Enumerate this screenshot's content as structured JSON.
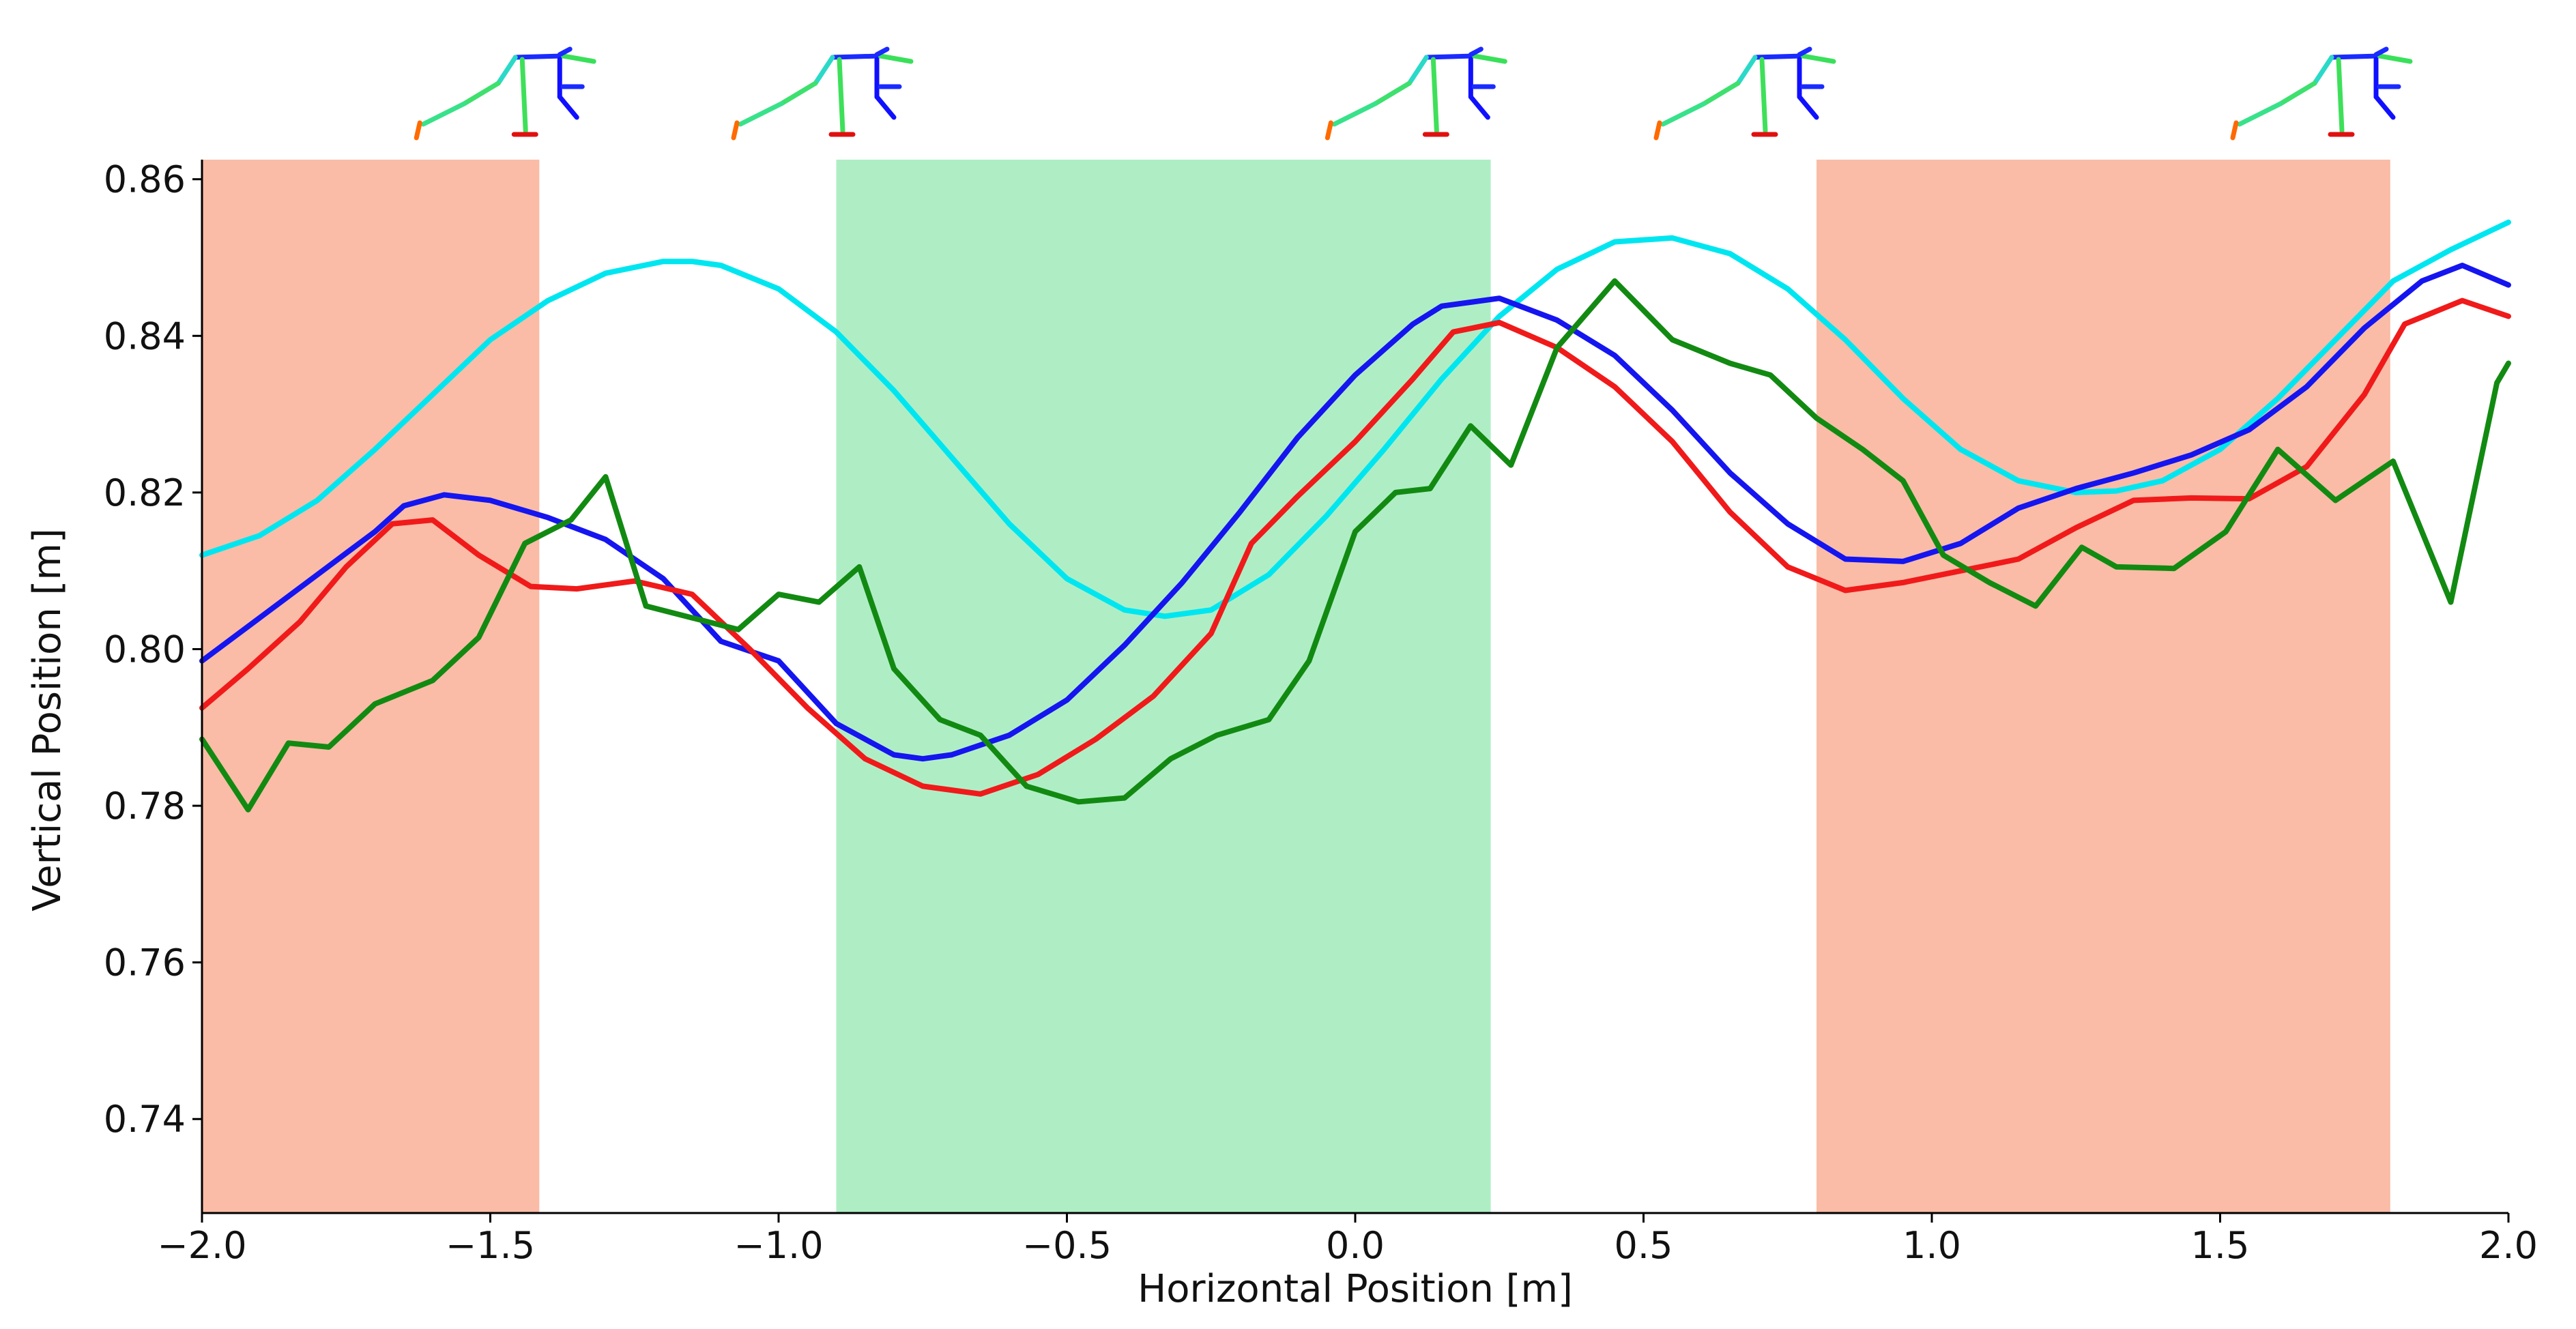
{
  "chart_data": {
    "type": "line",
    "title": "",
    "xlabel": "Horizontal Position [m]",
    "ylabel": "Vertical Position [m]",
    "xlim": [
      -2.0,
      2.0
    ],
    "ylim": [
      0.728,
      0.8625
    ],
    "x_ticks": [
      -2.0,
      -1.5,
      -1.0,
      -0.5,
      0.0,
      0.5,
      1.0,
      1.5,
      2.0
    ],
    "x_tick_labels": [
      "−2.0",
      "−1.5",
      "−1.0",
      "−0.5",
      "0.0",
      "0.5",
      "1.0",
      "1.5",
      "2.0"
    ],
    "y_ticks": [
      0.74,
      0.76,
      0.78,
      0.8,
      0.82,
      0.84,
      0.86
    ],
    "y_tick_labels": [
      "0.74",
      "0.76",
      "0.78",
      "0.80",
      "0.82",
      "0.84",
      "0.86"
    ],
    "grid": false,
    "shaded_regions": [
      {
        "x_start": -2.0,
        "x_end": -1.415,
        "color": "#f9b59c"
      },
      {
        "x_start": -0.9,
        "x_end": 0.235,
        "color": "#a6ecbf"
      },
      {
        "x_start": 0.8,
        "x_end": 1.795,
        "color": "#f9b59c"
      }
    ],
    "series": [
      {
        "name": "cyan",
        "color": "#00e6f0",
        "x": [
          -2.0,
          -1.9,
          -1.8,
          -1.7,
          -1.6,
          -1.5,
          -1.4,
          -1.3,
          -1.2,
          -1.15,
          -1.1,
          -1.0,
          -0.9,
          -0.8,
          -0.7,
          -0.6,
          -0.5,
          -0.4,
          -0.33,
          -0.25,
          -0.15,
          -0.05,
          0.05,
          0.15,
          0.25,
          0.35,
          0.45,
          0.55,
          0.65,
          0.75,
          0.85,
          0.95,
          1.05,
          1.15,
          1.25,
          1.32,
          1.4,
          1.5,
          1.6,
          1.7,
          1.8,
          1.9,
          2.0
        ],
        "y": [
          0.812,
          0.8145,
          0.819,
          0.8255,
          0.8325,
          0.8395,
          0.8445,
          0.848,
          0.8495,
          0.8495,
          0.849,
          0.846,
          0.8405,
          0.833,
          0.8245,
          0.816,
          0.809,
          0.805,
          0.8042,
          0.805,
          0.8095,
          0.817,
          0.8255,
          0.8345,
          0.8425,
          0.8485,
          0.852,
          0.8525,
          0.8505,
          0.846,
          0.8395,
          0.832,
          0.8255,
          0.8215,
          0.82,
          0.8202,
          0.8215,
          0.8255,
          0.832,
          0.8395,
          0.847,
          0.851,
          0.8545
        ]
      },
      {
        "name": "blue",
        "color": "#1515f0",
        "x": [
          -2.0,
          -1.9,
          -1.8,
          -1.7,
          -1.65,
          -1.58,
          -1.5,
          -1.4,
          -1.3,
          -1.2,
          -1.1,
          -1.0,
          -0.9,
          -0.8,
          -0.75,
          -0.7,
          -0.6,
          -0.5,
          -0.4,
          -0.3,
          -0.2,
          -0.1,
          0.0,
          0.1,
          0.15,
          0.25,
          0.35,
          0.45,
          0.55,
          0.65,
          0.75,
          0.85,
          0.95,
          1.05,
          1.15,
          1.25,
          1.35,
          1.45,
          1.55,
          1.65,
          1.75,
          1.85,
          1.92,
          2.0
        ],
        "y": [
          0.7985,
          0.804,
          0.8095,
          0.815,
          0.8183,
          0.8197,
          0.819,
          0.8168,
          0.814,
          0.809,
          0.801,
          0.7985,
          0.7905,
          0.7865,
          0.786,
          0.7865,
          0.789,
          0.7935,
          0.8005,
          0.8085,
          0.8175,
          0.827,
          0.835,
          0.8415,
          0.8438,
          0.8448,
          0.842,
          0.8375,
          0.8305,
          0.8225,
          0.816,
          0.8115,
          0.8112,
          0.8135,
          0.818,
          0.8205,
          0.8225,
          0.8248,
          0.828,
          0.8335,
          0.841,
          0.847,
          0.849,
          0.8465
        ]
      },
      {
        "name": "red",
        "color": "#f01a1a",
        "x": [
          -2.0,
          -1.92,
          -1.83,
          -1.75,
          -1.67,
          -1.6,
          -1.52,
          -1.43,
          -1.35,
          -1.25,
          -1.15,
          -1.05,
          -0.95,
          -0.85,
          -0.75,
          -0.65,
          -0.55,
          -0.45,
          -0.35,
          -0.25,
          -0.18,
          -0.1,
          0.0,
          0.1,
          0.17,
          0.25,
          0.35,
          0.45,
          0.55,
          0.65,
          0.75,
          0.85,
          0.95,
          1.05,
          1.15,
          1.25,
          1.35,
          1.45,
          1.55,
          1.65,
          1.75,
          1.82,
          1.92,
          2.0
        ],
        "y": [
          0.7925,
          0.7975,
          0.8035,
          0.8105,
          0.816,
          0.8165,
          0.812,
          0.808,
          0.8077,
          0.8087,
          0.807,
          0.8,
          0.7925,
          0.786,
          0.7825,
          0.7815,
          0.784,
          0.7885,
          0.794,
          0.802,
          0.8135,
          0.8195,
          0.8265,
          0.8345,
          0.8405,
          0.8417,
          0.8385,
          0.8335,
          0.8265,
          0.8175,
          0.8105,
          0.8075,
          0.8085,
          0.81,
          0.8115,
          0.8155,
          0.819,
          0.8193,
          0.8192,
          0.8233,
          0.8325,
          0.8415,
          0.8445,
          0.8425
        ]
      },
      {
        "name": "green",
        "color": "#128a12",
        "x": [
          -2.0,
          -1.92,
          -1.85,
          -1.78,
          -1.7,
          -1.6,
          -1.52,
          -1.44,
          -1.36,
          -1.3,
          -1.23,
          -1.15,
          -1.07,
          -1.0,
          -0.93,
          -0.86,
          -0.8,
          -0.72,
          -0.65,
          -0.57,
          -0.48,
          -0.4,
          -0.32,
          -0.24,
          -0.15,
          -0.08,
          0.0,
          0.07,
          0.13,
          0.2,
          0.27,
          0.35,
          0.45,
          0.55,
          0.65,
          0.72,
          0.8,
          0.88,
          0.95,
          1.02,
          1.1,
          1.18,
          1.26,
          1.32,
          1.42,
          1.51,
          1.6,
          1.7,
          1.8,
          1.9,
          1.98,
          2.0
        ],
        "y": [
          0.7885,
          0.7795,
          0.788,
          0.7875,
          0.793,
          0.796,
          0.8015,
          0.8135,
          0.8165,
          0.822,
          0.8055,
          0.804,
          0.8025,
          0.807,
          0.806,
          0.8105,
          0.7975,
          0.791,
          0.789,
          0.7825,
          0.7805,
          0.781,
          0.786,
          0.789,
          0.791,
          0.7985,
          0.815,
          0.82,
          0.8205,
          0.8285,
          0.8235,
          0.8385,
          0.847,
          0.8395,
          0.8365,
          0.835,
          0.8295,
          0.8255,
          0.8215,
          0.812,
          0.8085,
          0.8055,
          0.813,
          0.8105,
          0.8103,
          0.815,
          0.8255,
          0.819,
          0.824,
          0.806,
          0.834,
          0.8365
        ]
      }
    ],
    "annotations": [
      {
        "type": "stick-figure-pose",
        "x": -1.35
      },
      {
        "type": "stick-figure-pose",
        "x": -0.8
      },
      {
        "type": "stick-figure-pose",
        "x": 0.23
      },
      {
        "type": "stick-figure-pose",
        "x": 0.8
      },
      {
        "type": "stick-figure-pose",
        "x": 1.8
      }
    ]
  }
}
